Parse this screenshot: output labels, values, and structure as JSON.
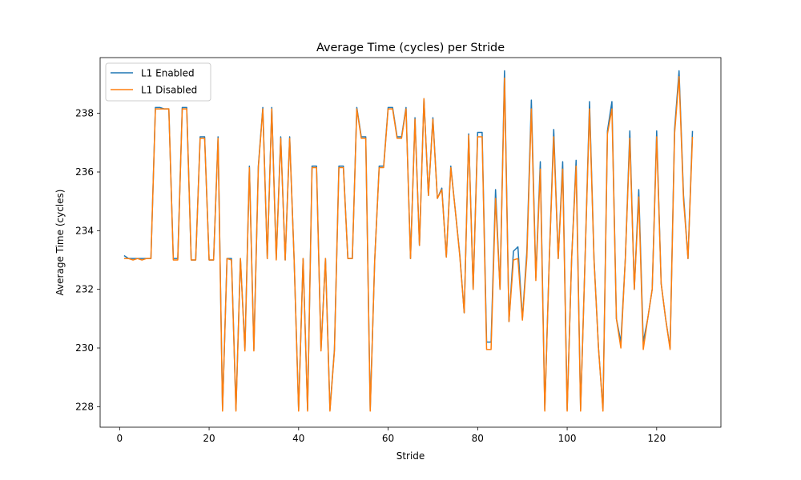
{
  "chart_data": {
    "type": "line",
    "title": "Average Time (cycles) per Stride",
    "xlabel": "Stride",
    "ylabel": "Average Time (cycles)",
    "xlim": [
      -4.35,
      134.35
    ],
    "ylim": [
      227.3,
      239.9
    ],
    "xticks": [
      0,
      20,
      40,
      60,
      80,
      100,
      120
    ],
    "yticks": [
      228,
      230,
      232,
      234,
      236,
      238
    ],
    "grid": false,
    "legend_position": "top-left",
    "x": [
      1,
      2,
      3,
      4,
      5,
      6,
      7,
      8,
      9,
      10,
      11,
      12,
      13,
      14,
      15,
      16,
      17,
      18,
      19,
      20,
      21,
      22,
      23,
      24,
      25,
      26,
      27,
      28,
      29,
      30,
      31,
      32,
      33,
      34,
      35,
      36,
      37,
      38,
      39,
      40,
      41,
      42,
      43,
      44,
      45,
      46,
      47,
      48,
      49,
      50,
      51,
      52,
      53,
      54,
      55,
      56,
      57,
      58,
      59,
      60,
      61,
      62,
      63,
      64,
      65,
      66,
      67,
      68,
      69,
      70,
      71,
      72,
      73,
      74,
      75,
      76,
      77,
      78,
      79,
      80,
      81,
      82,
      83,
      84,
      85,
      86,
      87,
      88,
      89,
      90,
      91,
      92,
      93,
      94,
      95,
      96,
      97,
      98,
      99,
      100,
      101,
      102,
      103,
      104,
      105,
      106,
      107,
      108,
      109,
      110,
      111,
      112,
      113,
      114,
      115,
      116,
      117,
      118,
      119,
      120,
      121,
      122,
      123,
      124,
      125,
      126,
      127,
      128
    ],
    "series": [
      {
        "name": "L1 Enabled",
        "color": "#1f77b4",
        "values": [
          233.15,
          233.05,
          233.05,
          233.05,
          233.05,
          233.05,
          233.05,
          238.2,
          238.2,
          238.15,
          238.15,
          233.05,
          233.05,
          238.2,
          238.2,
          233.0,
          233.0,
          237.2,
          237.2,
          233.0,
          233.0,
          237.2,
          227.9,
          233.05,
          233.05,
          227.9,
          233.05,
          229.95,
          236.2,
          229.95,
          236.2,
          238.2,
          233.05,
          238.2,
          233.05,
          237.2,
          233.0,
          237.2,
          233.0,
          227.9,
          233.05,
          227.9,
          236.2,
          236.2,
          229.95,
          233.05,
          227.9,
          229.95,
          236.2,
          236.2,
          233.05,
          233.05,
          238.2,
          237.2,
          237.2,
          227.9,
          233.0,
          236.2,
          236.2,
          238.2,
          238.2,
          237.2,
          237.2,
          238.2,
          233.05,
          237.85,
          233.5,
          238.5,
          235.2,
          237.85,
          235.1,
          235.45,
          233.1,
          236.2,
          234.7,
          233.2,
          231.2,
          237.3,
          232.0,
          237.35,
          237.35,
          230.2,
          230.2,
          235.4,
          232.0,
          239.45,
          230.9,
          233.3,
          233.45,
          231.0,
          233.3,
          238.45,
          232.4,
          236.35,
          227.9,
          233.0,
          237.45,
          233.05,
          236.35,
          227.9,
          233.05,
          236.4,
          227.9,
          233.05,
          238.4,
          233.05,
          230.0,
          227.9,
          237.4,
          238.4,
          231.0,
          230.2,
          233.05,
          237.4,
          232.0,
          235.4,
          230.2,
          231.0,
          232.0,
          237.4,
          232.2,
          231.0,
          230.0,
          237.45,
          239.45,
          235.2,
          233.05,
          237.4
        ]
      },
      {
        "name": "L1 Disabled",
        "color": "#ff7f0e",
        "values": [
          233.05,
          233.05,
          233.0,
          233.05,
          233.0,
          233.05,
          233.05,
          238.15,
          238.15,
          238.15,
          238.15,
          233.0,
          233.0,
          238.15,
          238.15,
          233.0,
          233.0,
          237.15,
          237.15,
          233.0,
          233.0,
          237.15,
          227.85,
          233.05,
          233.0,
          227.85,
          233.05,
          229.9,
          236.15,
          229.9,
          236.15,
          238.15,
          233.05,
          238.15,
          233.0,
          237.15,
          233.0,
          237.15,
          233.0,
          227.85,
          233.05,
          227.85,
          236.15,
          236.15,
          229.9,
          233.05,
          227.85,
          229.9,
          236.15,
          236.15,
          233.05,
          233.05,
          238.15,
          237.15,
          237.15,
          227.85,
          233.0,
          236.15,
          236.15,
          238.15,
          238.15,
          237.15,
          237.15,
          238.15,
          233.05,
          237.8,
          233.5,
          238.5,
          235.2,
          237.8,
          235.1,
          235.4,
          233.1,
          236.15,
          234.7,
          233.15,
          231.2,
          237.25,
          232.0,
          237.2,
          237.2,
          229.95,
          229.95,
          235.1,
          232.0,
          239.2,
          230.9,
          233.0,
          233.05,
          230.95,
          233.1,
          238.15,
          232.3,
          236.1,
          227.85,
          233.0,
          237.2,
          233.05,
          236.1,
          227.85,
          233.05,
          236.2,
          227.85,
          233.05,
          238.15,
          233.0,
          230.0,
          227.85,
          237.3,
          238.15,
          231.0,
          230.0,
          233.05,
          237.15,
          232.0,
          235.15,
          229.95,
          231.0,
          232.0,
          237.2,
          232.2,
          231.0,
          229.95,
          237.3,
          239.25,
          235.05,
          233.05,
          237.2
        ]
      }
    ]
  }
}
